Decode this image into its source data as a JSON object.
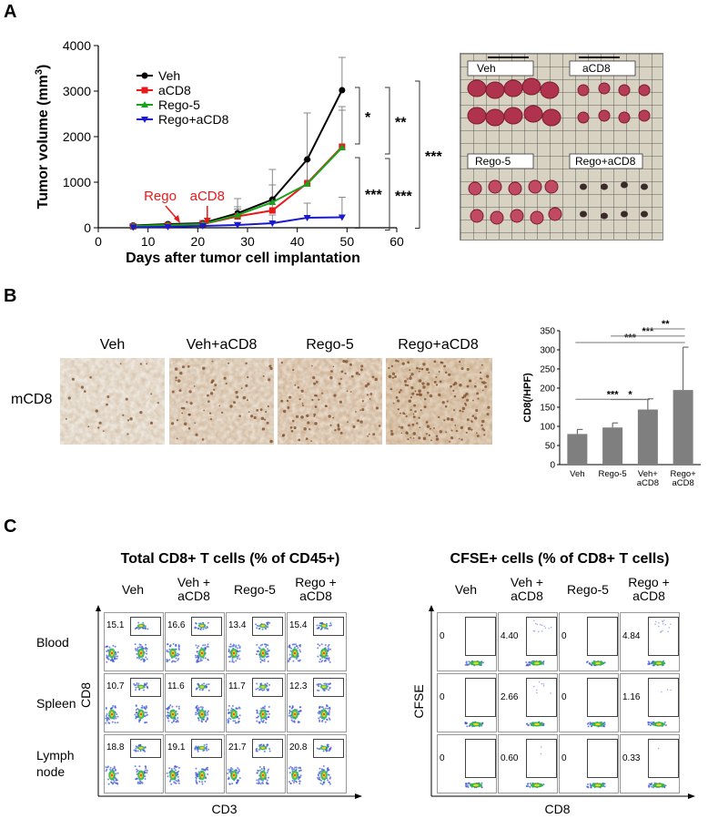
{
  "panels": {
    "a": "A",
    "b": "B",
    "c": "C"
  },
  "panel_a": {
    "chart_data": {
      "type": "line",
      "xlabel": "Days after tumor cell implantation",
      "ylabel": "Tumor volume (mm",
      "ylabel_sup": "3",
      "ylabel_close": ")",
      "xlim": [
        0,
        60
      ],
      "ylim": [
        0,
        4000
      ],
      "xticks": [
        0,
        10,
        20,
        30,
        40,
        50,
        60
      ],
      "yticks": [
        0,
        1000,
        2000,
        3000,
        4000
      ],
      "x": [
        7,
        14,
        21,
        28,
        35,
        42,
        49
      ],
      "legend_position": "top-left",
      "series": [
        {
          "name": "Veh",
          "color": "#000000",
          "marker": "circle",
          "values": [
            50,
            80,
            100,
            320,
            620,
            1500,
            3020
          ],
          "err": [
            30,
            40,
            60,
            320,
            660,
            1020,
            720
          ]
        },
        {
          "name": "aCD8",
          "color": "#e8191b",
          "marker": "square",
          "values": [
            30,
            50,
            80,
            250,
            380,
            980,
            1780
          ],
          "err": [
            20,
            30,
            50,
            160,
            260,
            500,
            800
          ]
        },
        {
          "name": "Rego-5",
          "color": "#1aa31a",
          "marker": "triangle",
          "values": [
            40,
            60,
            80,
            280,
            560,
            960,
            1760
          ],
          "err": [
            20,
            30,
            50,
            180,
            380,
            540,
            900
          ]
        },
        {
          "name": "Rego+aCD8",
          "color": "#1a1acc",
          "marker": "triangle-down",
          "values": [
            10,
            20,
            40,
            60,
            100,
            220,
            230
          ],
          "err": [
            10,
            15,
            30,
            60,
            180,
            320,
            440
          ]
        }
      ],
      "annotations": [
        {
          "text": "Rego",
          "x": 15,
          "color": "#e8191b"
        },
        {
          "text": "aCD8",
          "x": 21,
          "color": "#e8191b"
        }
      ],
      "significance": [
        {
          "text": "*"
        },
        {
          "text": "**"
        },
        {
          "text": "***"
        },
        {
          "text": "***"
        },
        {
          "text": "***"
        }
      ]
    },
    "photo_labels": [
      "Veh",
      "aCD8",
      "Rego-5",
      "Rego+aCD8"
    ]
  },
  "panel_b": {
    "ihc_headers": [
      "Veh",
      "Veh+aCD8",
      "Rego-5",
      "Rego+aCD8"
    ],
    "row_label": "mCD8",
    "chart_data": {
      "type": "bar",
      "categories": [
        "Veh",
        "Rego-5",
        "Veh+\naCD8",
        "Rego+\naCD8"
      ],
      "category_lines": [
        [
          "Veh"
        ],
        [
          "Rego-5"
        ],
        [
          "Veh+",
          "aCD8"
        ],
        [
          "Rego+",
          "aCD8"
        ]
      ],
      "values": [
        80,
        97,
        144,
        195
      ],
      "err": [
        12,
        12,
        28,
        112
      ],
      "ylabel": "CD8(/HPF)",
      "ylim": [
        0,
        350
      ],
      "yticks": [
        0,
        50,
        100,
        150,
        200,
        250,
        300,
        350
      ],
      "color": "#7f7f7f",
      "significance": [
        {
          "text": "*",
          "from": 1,
          "to": 2
        },
        {
          "text": "***",
          "from": 0,
          "to": 2
        },
        {
          "text": "***",
          "from": 0,
          "to": 3
        },
        {
          "text": "***",
          "from": 1,
          "to": 3
        },
        {
          "text": "**",
          "from": 2,
          "to": 3
        }
      ]
    }
  },
  "panel_c": {
    "left": {
      "title": "Total CD8+ T cells (% of CD45+)",
      "col_headers": [
        [
          "Veh"
        ],
        [
          "Veh +",
          "aCD8"
        ],
        [
          "Rego-5"
        ],
        [
          "Rego +",
          "aCD8"
        ]
      ],
      "row_labels": [
        [
          "Blood"
        ],
        [
          "Spleen"
        ],
        [
          "Lymph",
          "node"
        ]
      ],
      "values": [
        [
          "15.1",
          "16.6",
          "13.4",
          "15.4"
        ],
        [
          "10.7",
          "11.6",
          "11.7",
          "12.3"
        ],
        [
          "18.8",
          "19.1",
          "21.7",
          "20.8"
        ]
      ],
      "xaxis": "CD3",
      "yaxis": "CD8"
    },
    "right": {
      "title": "CFSE+ cells (% of CD8+ T cells)",
      "col_headers": [
        [
          "Veh"
        ],
        [
          "Veh +",
          "aCD8"
        ],
        [
          "Rego-5"
        ],
        [
          "Rego +",
          "aCD8"
        ]
      ],
      "values": [
        [
          "0",
          "4.40",
          "0",
          "4.84"
        ],
        [
          "0",
          "2.66",
          "0",
          "1.16"
        ],
        [
          "0",
          "0.60",
          "0",
          "0.33"
        ]
      ],
      "xaxis": "CD8",
      "yaxis": "CFSE"
    }
  }
}
